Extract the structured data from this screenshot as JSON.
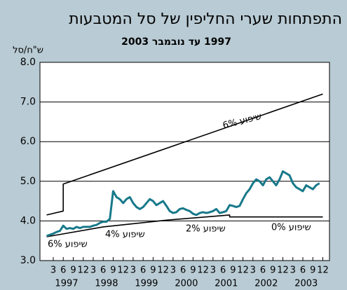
{
  "chart_data": {
    "type": "line",
    "title": "התפתחות שערי החליפין של סל המטבעות",
    "subtitle": "1997 עד נובמבר 2003",
    "y_label": "ש\"ח/סל",
    "ylim": [
      3,
      8
    ],
    "yticks": [
      {
        "value": 3,
        "label": "3.0"
      },
      {
        "value": 4,
        "label": "4.0"
      },
      {
        "value": 5,
        "label": "5.0"
      },
      {
        "value": 6,
        "label": "6.0"
      },
      {
        "value": 7,
        "label": "7.0"
      },
      {
        "value": 8,
        "label": "8.0"
      }
    ],
    "xlim": [
      "1996-11",
      "2004-02"
    ],
    "xticks": [
      {
        "value": "1997-03",
        "label": "3"
      },
      {
        "value": "1997-06",
        "label": "6"
      },
      {
        "value": "1997-09",
        "label": "9"
      },
      {
        "value": "1997-12",
        "label": "12"
      },
      {
        "value": "1998-03",
        "label": "3"
      },
      {
        "value": "1998-06",
        "label": "6"
      },
      {
        "value": "1998-09",
        "label": "9"
      },
      {
        "value": "1998-12",
        "label": "12"
      },
      {
        "value": "1999-03",
        "label": "3"
      },
      {
        "value": "1999-06",
        "label": "6"
      },
      {
        "value": "1999-09",
        "label": "9"
      },
      {
        "value": "1999-12",
        "label": "12"
      },
      {
        "value": "2000-03",
        "label": "3"
      },
      {
        "value": "2000-06",
        "label": "6"
      },
      {
        "value": "2000-09",
        "label": "9"
      },
      {
        "value": "2000-12",
        "label": "12"
      },
      {
        "value": "2001-03",
        "label": "3"
      },
      {
        "value": "2001-06",
        "label": "6"
      },
      {
        "value": "2001-09",
        "label": "9"
      },
      {
        "value": "2001-12",
        "label": "12"
      },
      {
        "value": "2002-03",
        "label": "3"
      },
      {
        "value": "2002-06",
        "label": "6"
      },
      {
        "value": "2002-09",
        "label": "9"
      },
      {
        "value": "2002-12",
        "label": "12"
      },
      {
        "value": "2003-03",
        "label": "3"
      },
      {
        "value": "2003-06",
        "label": "6"
      },
      {
        "value": "2003-09",
        "label": "9"
      },
      {
        "value": "2003-12",
        "label": "12"
      }
    ],
    "years": [
      "1997",
      "1998",
      "1999",
      "2000",
      "2001",
      "2002",
      "2003"
    ],
    "grid": true,
    "series": [
      {
        "color": "#17798a",
        "x": [
          "1997-01",
          "1997-02",
          "1997-03",
          "1997-04",
          "1997-05",
          "1997-06",
          "1997-07",
          "1997-08",
          "1997-09",
          "1997-10",
          "1997-11",
          "1997-12",
          "1998-01",
          "1998-02",
          "1998-03",
          "1998-04",
          "1998-05",
          "1998-06",
          "1998-07",
          "1998-08",
          "1998-09",
          "1998-10",
          "1998-11",
          "1998-12",
          "1999-01",
          "1999-02",
          "1999-03",
          "1999-04",
          "1999-05",
          "1999-06",
          "1999-07",
          "1999-08",
          "1999-09",
          "1999-10",
          "1999-11",
          "1999-12",
          "2000-01",
          "2000-02",
          "2000-03",
          "2000-04",
          "2000-05",
          "2000-06",
          "2000-07",
          "2000-08",
          "2000-09",
          "2000-10",
          "2000-11",
          "2000-12",
          "2001-01",
          "2001-02",
          "2001-03",
          "2001-04",
          "2001-05",
          "2001-06",
          "2001-07",
          "2001-08",
          "2001-09",
          "2001-10",
          "2001-11",
          "2001-12",
          "2002-01",
          "2002-02",
          "2002-03",
          "2002-04",
          "2002-05",
          "2002-06",
          "2002-07",
          "2002-08",
          "2002-09",
          "2002-10",
          "2002-11",
          "2002-12",
          "2003-01",
          "2003-02",
          "2003-03",
          "2003-04",
          "2003-05",
          "2003-06",
          "2003-07",
          "2003-08",
          "2003-09",
          "2003-10",
          "2003-11"
        ],
        "values": [
          3.62,
          3.65,
          3.68,
          3.72,
          3.75,
          3.88,
          3.8,
          3.82,
          3.8,
          3.85,
          3.82,
          3.85,
          3.85,
          3.85,
          3.88,
          3.9,
          3.95,
          3.98,
          3.98,
          4.05,
          4.75,
          4.6,
          4.55,
          4.45,
          4.55,
          4.6,
          4.45,
          4.35,
          4.3,
          4.35,
          4.45,
          4.55,
          4.5,
          4.4,
          4.45,
          4.5,
          4.38,
          4.25,
          4.2,
          4.22,
          4.3,
          4.32,
          4.28,
          4.25,
          4.18,
          4.15,
          4.2,
          4.22,
          4.2,
          4.22,
          4.25,
          4.3,
          4.2,
          4.22,
          4.25,
          4.4,
          4.38,
          4.35,
          4.38,
          4.55,
          4.7,
          4.8,
          4.95,
          5.05,
          5.0,
          4.9,
          5.05,
          5.1,
          5.0,
          4.9,
          5.05,
          5.25,
          5.2,
          5.15,
          4.95,
          4.85,
          4.8,
          4.75,
          4.9,
          4.85,
          4.8,
          4.9,
          4.95
        ]
      }
    ],
    "bands": [
      {
        "color": "#000000",
        "x": [
          "1997-01",
          "1997-06",
          "1997-06",
          "2003-12"
        ],
        "values": [
          4.15,
          4.25,
          4.93,
          7.2
        ]
      },
      {
        "color": "#000000",
        "x": [
          "1997-01",
          "1998-06",
          "2000-01",
          "2001-08",
          "2001-08",
          "2003-12"
        ],
        "values": [
          3.6,
          3.85,
          4.02,
          4.15,
          4.1,
          4.1
        ]
      }
    ],
    "annotations": [
      "שיפוע 6%",
      "שיפוע 6%",
      "שיפוע 4%",
      "שיפוע 2%",
      "שיפוע 0%"
    ]
  }
}
